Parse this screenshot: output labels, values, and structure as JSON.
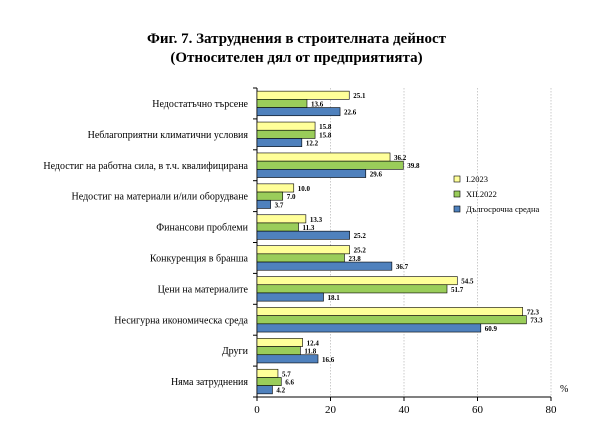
{
  "title_line1": "Фиг. 7. Затруднения в строителната дейност",
  "title_line2": "(Относителен дял от предприятията)",
  "colors": {
    "series1": "#ffff99",
    "series2": "#9acd5a",
    "series3": "#4f81bd",
    "grid": "#bfbfbf",
    "axis": "#000000"
  },
  "chart_data": {
    "type": "bar",
    "orientation": "horizontal",
    "categories": [
      "Недостатъчно търсене",
      "Неблагоприятни климатични условия",
      "Недостиг на работна сила, в т.ч. квалифицирана",
      "Недостиг на материали и/или оборудване",
      "Финансови проблеми",
      "Конкуренция в бранша",
      "Цени на материалите",
      "Несигурна икономическа среда",
      "Други",
      "Няма затруднения"
    ],
    "series": [
      {
        "name": "I.2023",
        "values": [
          25.1,
          15.8,
          36.2,
          10.0,
          13.3,
          25.2,
          54.5,
          72.3,
          12.4,
          5.7
        ]
      },
      {
        "name": "XII.2022",
        "values": [
          13.6,
          15.8,
          39.8,
          7.0,
          11.3,
          23.8,
          51.7,
          73.3,
          11.8,
          6.6
        ]
      },
      {
        "name": "Дългосрочна средна",
        "values": [
          22.6,
          12.2,
          29.6,
          3.7,
          25.2,
          36.7,
          18.1,
          60.9,
          16.6,
          4.2
        ]
      }
    ],
    "xlim": [
      0,
      80
    ],
    "xticks": [
      "0",
      "20",
      "40",
      "60",
      "80"
    ],
    "unit_label": "%",
    "grid": true,
    "legend_position": "right"
  }
}
